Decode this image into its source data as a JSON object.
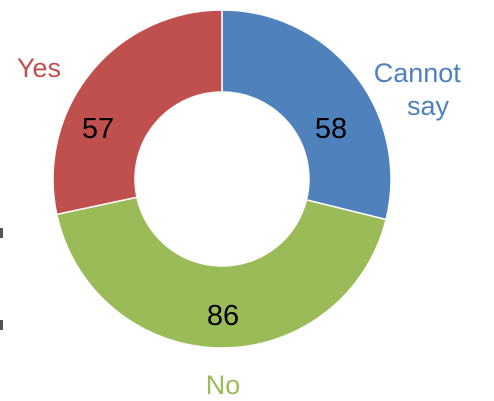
{
  "chart_data": {
    "type": "pie",
    "variant": "donut",
    "title": "",
    "categories": [
      "Cannot say",
      "No",
      "Yes"
    ],
    "values": [
      58,
      86,
      57
    ],
    "colors": [
      "#4F81BD",
      "#9BBB59",
      "#C0504D"
    ],
    "category_labels": [
      {
        "lines": [
          "Cannot",
          "say"
        ],
        "color": "#4F81BD"
      },
      {
        "lines": [
          "No"
        ],
        "color": "#9BBB59"
      },
      {
        "lines": [
          "Yes"
        ],
        "color": "#C0504D"
      }
    ],
    "data_labels": [
      "58",
      "86",
      "57"
    ],
    "start": "12 o'clock",
    "direction": "clockwise",
    "legend": "none"
  }
}
